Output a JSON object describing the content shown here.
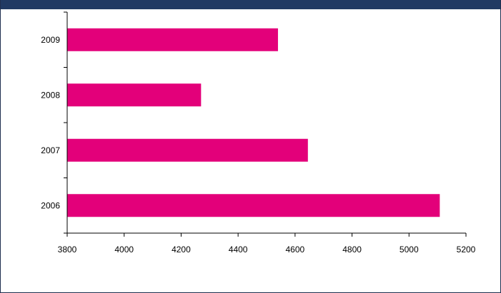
{
  "chart_data": {
    "type": "bar",
    "orientation": "horizontal",
    "title": "",
    "xlabel": "",
    "ylabel": "",
    "categories": [
      "2009",
      "2008",
      "2007",
      "2006"
    ],
    "values": [
      4540,
      4270,
      4645,
      5108
    ],
    "xlim": [
      3800,
      5200
    ],
    "xticks": [
      3800,
      4000,
      4200,
      4400,
      4600,
      4800,
      5000,
      5200
    ],
    "grid": false,
    "bar_color": "#e3007a"
  }
}
